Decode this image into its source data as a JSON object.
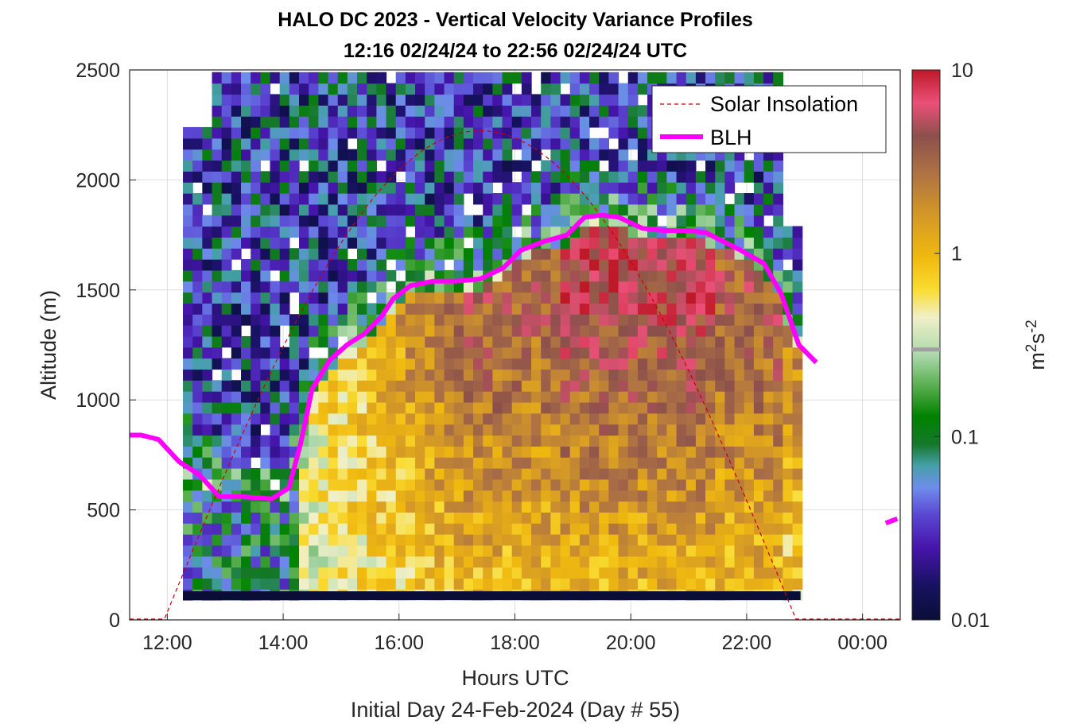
{
  "chart_data": {
    "type": "heatmap",
    "title": "HALO DC 2023 - Vertical Velocity Variance Profiles",
    "subtitle": "12:16 02/24/24 to 22:56 02/24/24  UTC",
    "xlabel": "Hours UTC",
    "xlabel_secondary": "Initial Day 24-Feb-2024 (Day # 55)",
    "ylabel": "Altitude (m)",
    "xlim_hours": [
      11.35,
      24.65
    ],
    "ylim": [
      0,
      2500
    ],
    "x_ticks": [
      {
        "value": 12,
        "label": "12:00"
      },
      {
        "value": 14,
        "label": "14:00"
      },
      {
        "value": 16,
        "label": "16:00"
      },
      {
        "value": 18,
        "label": "18:00"
      },
      {
        "value": 20,
        "label": "20:00"
      },
      {
        "value": 22,
        "label": "22:00"
      },
      {
        "value": 24,
        "label": "00:00"
      }
    ],
    "y_ticks": [
      {
        "value": 0,
        "label": "0"
      },
      {
        "value": 500,
        "label": "500"
      },
      {
        "value": 1000,
        "label": "1000"
      },
      {
        "value": 1500,
        "label": "1500"
      },
      {
        "value": 2000,
        "label": "2000"
      },
      {
        "value": 2500,
        "label": "2500"
      }
    ],
    "grid": true,
    "colorbar": {
      "label": "m²s⁻²",
      "scale": "log",
      "range": [
        0.01,
        10
      ],
      "ticks": [
        {
          "value": 0.01,
          "label": "0.01"
        },
        {
          "value": 0.1,
          "label": "0.1"
        },
        {
          "value": 1,
          "label": "1"
        },
        {
          "value": 10,
          "label": "10"
        }
      ],
      "marker_value": 0.3
    },
    "legend": {
      "placement": "top-right",
      "entries": [
        {
          "label": "Solar Insolation",
          "color": "#cc0000",
          "style": "dashed"
        },
        {
          "label": "BLH",
          "color": "#ff00ff",
          "style": "solid"
        }
      ]
    },
    "heatmap": {
      "time_start_hour": 12.27,
      "time_end_hour": 22.93,
      "time_step_hours": 0.167,
      "altitude_bottom_m": 90,
      "altitude_top_m": 2500,
      "altitude_step_m": 50,
      "noise_layer_m": [
        90,
        130
      ],
      "description_of_values": "variance (m2 s-2), low (~0.01-0.1) above BLH and in the morning, high (~0.5-3) in the afternoon boundary layer"
    },
    "series": [
      {
        "name": "BLH",
        "color": "#ff00ff",
        "x_hours": [
          11.35,
          11.55,
          11.85,
          12.2,
          12.55,
          12.9,
          13.3,
          13.8,
          14.1,
          14.2,
          14.3,
          14.5,
          14.8,
          15.1,
          15.4,
          15.7,
          15.9,
          16.2,
          16.6,
          17.0,
          17.4,
          17.8,
          18.1,
          18.5,
          18.9,
          19.2,
          19.5,
          19.8,
          20.2,
          20.6,
          21.0,
          21.3,
          21.6,
          21.9,
          22.3,
          22.6,
          22.9,
          23.2
        ],
        "values": [
          840,
          840,
          820,
          720,
          660,
          560,
          560,
          550,
          600,
          700,
          800,
          1050,
          1180,
          1250,
          1300,
          1380,
          1460,
          1520,
          1540,
          1540,
          1550,
          1600,
          1680,
          1720,
          1750,
          1830,
          1840,
          1830,
          1780,
          1770,
          1770,
          1760,
          1720,
          1680,
          1620,
          1480,
          1250,
          1170
        ]
      },
      {
        "name": "BLH (next day)",
        "color": "#ff00ff",
        "x_hours": [
          24.4,
          24.6
        ],
        "values": [
          440,
          460
        ]
      },
      {
        "name": "Solar Insolation",
        "color": "#cc0000",
        "style": "dashed",
        "peak_hour": 17.45,
        "sunrise_hour": 11.95,
        "sunset_hour": 22.85,
        "peak_altitude_equivalent": 2220
      }
    ]
  }
}
